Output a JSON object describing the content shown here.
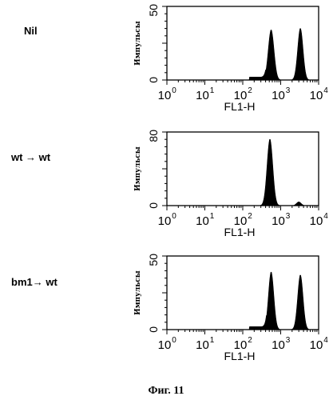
{
  "caption": "Фиг. 11",
  "chart_data": [
    {
      "type": "area",
      "row_label": "Nil",
      "ylabel": "Импульсы",
      "xlabel": "FL1-H",
      "xscale": "log",
      "xlim": [
        1,
        10000
      ],
      "ylim": [
        0,
        50
      ],
      "yticks": [
        "0",
        "50"
      ],
      "xticks": [
        {
          "base": "10",
          "exp": "0"
        },
        {
          "base": "10",
          "exp": "1"
        },
        {
          "base": "10",
          "exp": "2"
        },
        {
          "base": "10",
          "exp": "3"
        },
        {
          "base": "10",
          "exp": "4"
        }
      ],
      "peaks": [
        {
          "center": 560,
          "height": 34,
          "width_log10": 0.075
        },
        {
          "center": 3300,
          "height": 35,
          "width_log10": 0.07
        }
      ],
      "baseline": [
        {
          "from": 150,
          "to": 400,
          "level": 2
        }
      ]
    },
    {
      "type": "area",
      "row_label": "wt → wt",
      "ylabel": "Импульсы",
      "xlabel": "FL1-H",
      "xscale": "log",
      "xlim": [
        1,
        10000
      ],
      "ylim": [
        0,
        80
      ],
      "yticks": [
        "0",
        "80"
      ],
      "xticks": [
        {
          "base": "10",
          "exp": "0"
        },
        {
          "base": "10",
          "exp": "1"
        },
        {
          "base": "10",
          "exp": "2"
        },
        {
          "base": "10",
          "exp": "3"
        },
        {
          "base": "10",
          "exp": "4"
        }
      ],
      "peaks": [
        {
          "center": 520,
          "height": 72,
          "width_log10": 0.075
        },
        {
          "center": 3000,
          "height": 4,
          "width_log10": 0.06
        }
      ],
      "baseline": []
    },
    {
      "type": "area",
      "row_label": "bm1→ wt",
      "ylabel": "Импульсы",
      "xlabel": "FL1-H",
      "xscale": "log",
      "xlim": [
        1,
        10000
      ],
      "ylim": [
        0,
        50
      ],
      "yticks": [
        "0",
        "50"
      ],
      "xticks": [
        {
          "base": "10",
          "exp": "0"
        },
        {
          "base": "10",
          "exp": "1"
        },
        {
          "base": "10",
          "exp": "2"
        },
        {
          "base": "10",
          "exp": "3"
        },
        {
          "base": "10",
          "exp": "4"
        }
      ],
      "peaks": [
        {
          "center": 560,
          "height": 39,
          "width_log10": 0.07
        },
        {
          "center": 3300,
          "height": 37,
          "width_log10": 0.07
        }
      ],
      "baseline": [
        {
          "from": 150,
          "to": 420,
          "level": 2
        }
      ]
    }
  ]
}
